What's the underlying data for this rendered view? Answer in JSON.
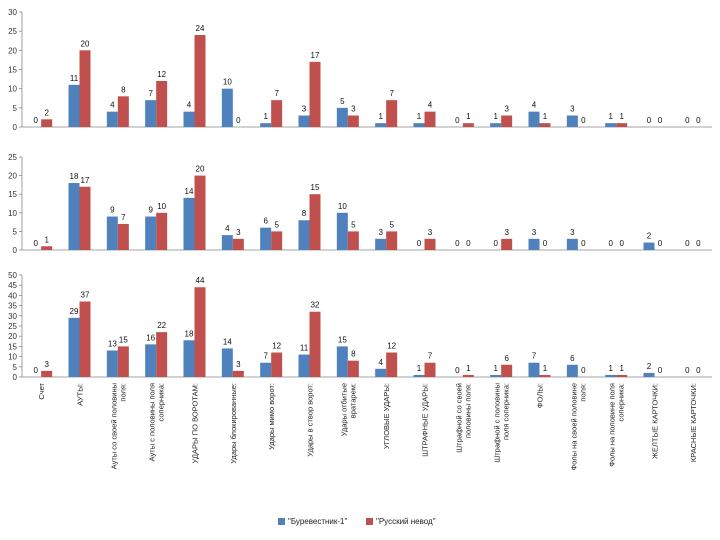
{
  "chart_data": [
    {
      "type": "bar",
      "title": "",
      "xlabel": "",
      "ylabel": "",
      "ylim": [
        0,
        30
      ],
      "yticks": [
        0,
        5,
        10,
        15,
        20,
        25,
        30
      ],
      "categories": [
        "Счет",
        "АУТЫ:",
        "Ауты со своей половины поля:",
        "Ауты с половины поля соперника:",
        "УДАРЫ ПО ВОРОТАМ:",
        "Удары блокированные:",
        "Удары мимо ворот:",
        "Удары в створ ворот:",
        "Удары отбитые вратарем:",
        "УГЛОВЫЕ УДАРЫ:",
        "ШТРАФНЫЕ УДАРЫ:",
        "Штрафной со своей половины поля:",
        "Штрафной с половины поля соперника:",
        "ФОЛЫ:",
        "Фолы на своей половине поля:",
        "Фолы на половине поля соперника:",
        "ЖЕЛТЫЕ КАРТОЧКИ:",
        "КРАСНЫЕ КАРТОЧКИ:"
      ],
      "series": [
        {
          "name": "\"Буревестник-1\"",
          "values": [
            0,
            11,
            4,
            7,
            4,
            10,
            1,
            3,
            5,
            1,
            1,
            0,
            1,
            4,
            3,
            1,
            0,
            0
          ]
        },
        {
          "name": "\"Русский невод\"",
          "values": [
            2,
            20,
            8,
            12,
            24,
            0,
            7,
            17,
            3,
            7,
            4,
            1,
            3,
            1,
            0,
            1,
            0,
            0
          ]
        }
      ]
    },
    {
      "type": "bar",
      "title": "",
      "xlabel": "",
      "ylabel": "",
      "ylim": [
        0,
        25
      ],
      "yticks": [
        0,
        5,
        10,
        15,
        20,
        25
      ],
      "categories": [
        "Счет",
        "АУТЫ:",
        "Ауты со своей половины поля:",
        "Ауты с половины поля соперника:",
        "УДАРЫ ПО ВОРОТАМ:",
        "Удары блокированные:",
        "Удары мимо ворот:",
        "Удары в створ ворот:",
        "Удары отбитые вратарем:",
        "УГЛОВЫЕ УДАРЫ:",
        "ШТРАФНЫЕ УДАРЫ:",
        "Штрафной со своей половины поля:",
        "Штрафной с половины поля соперника:",
        "ФОЛЫ:",
        "Фолы на своей половине поля:",
        "Фолы на половине поля соперника:",
        "ЖЕЛТЫЕ КАРТОЧКИ:",
        "КРАСНЫЕ КАРТОЧКИ:"
      ],
      "series": [
        {
          "name": "\"Буревестник-1\"",
          "values": [
            0,
            18,
            9,
            9,
            14,
            4,
            6,
            8,
            10,
            3,
            0,
            0,
            0,
            3,
            3,
            0,
            2,
            0
          ]
        },
        {
          "name": "\"Русский невод\"",
          "values": [
            1,
            17,
            7,
            10,
            20,
            3,
            5,
            15,
            5,
            5,
            3,
            0,
            3,
            0,
            0,
            0,
            0,
            0
          ]
        }
      ]
    },
    {
      "type": "bar",
      "title": "",
      "xlabel": "",
      "ylabel": "",
      "ylim": [
        0,
        50
      ],
      "yticks": [
        0,
        5,
        10,
        15,
        20,
        25,
        30,
        35,
        40,
        45,
        50
      ],
      "categories": [
        "Счет",
        "АУТЫ:",
        "Ауты со своей половины поля:",
        "Ауты с половины поля соперника:",
        "УДАРЫ ПО ВОРОТАМ:",
        "Удары блокированные:",
        "Удары мимо ворот:",
        "Удары в створ ворот:",
        "Удары отбитые вратарем:",
        "УГЛОВЫЕ УДАРЫ:",
        "ШТРАФНЫЕ УДАРЫ:",
        "Штрафной со своей половины поля:",
        "Штрафной с половины поля соперника:",
        "ФОЛЫ:",
        "Фолы на своей половине поля:",
        "Фолы на половине поля соперника:",
        "ЖЕЛТЫЕ КАРТОЧКИ:",
        "КРАСНЫЕ КАРТОЧКИ:"
      ],
      "series": [
        {
          "name": "\"Буревестник-1\"",
          "values": [
            0,
            29,
            13,
            16,
            18,
            14,
            7,
            11,
            15,
            4,
            1,
            0,
            1,
            7,
            6,
            1,
            2,
            0
          ]
        },
        {
          "name": "\"Русский невод\"",
          "values": [
            3,
            37,
            15,
            22,
            44,
            3,
            12,
            32,
            8,
            12,
            7,
            1,
            6,
            1,
            0,
            1,
            0,
            0
          ]
        }
      ]
    }
  ],
  "x_labels": [
    [
      "Счет"
    ],
    [
      "АУТЫ:"
    ],
    [
      "Ауты со своей половины",
      "поля:"
    ],
    [
      "Ауты с половины поля",
      "соперника:"
    ],
    [
      "УДАРЫ ПО ВОРОТАМ:"
    ],
    [
      "Удары блокированные:"
    ],
    [
      "Удары мимо ворот:"
    ],
    [
      "Удары в створ ворот:"
    ],
    [
      "Удары отбитые",
      "вратарем:"
    ],
    [
      "УГЛОВЫЕ УДАРЫ:"
    ],
    [
      "ШТРАФНЫЕ УДАРЫ:"
    ],
    [
      "Штрафной со своей",
      "половины поля:"
    ],
    [
      "Штрафной с половины",
      "поля соперника:"
    ],
    [
      "ФОЛЫ:"
    ],
    [
      "Фолы на своей половине",
      "поля:"
    ],
    [
      "Фолы на половине поля",
      "соперника:"
    ],
    [
      "ЖЕЛТЫЕ КАРТОЧКИ:"
    ],
    [
      "КРАСНЫЕ КАРТОЧКИ:"
    ]
  ],
  "legend": {
    "position": "bottom",
    "items": [
      "\"Буревестник-1\"",
      "\"Русский невод\""
    ]
  },
  "colors": {
    "series_1": "#4f81bd",
    "series_2": "#c0504d",
    "axis": "#888888",
    "background": "#ffffff"
  }
}
